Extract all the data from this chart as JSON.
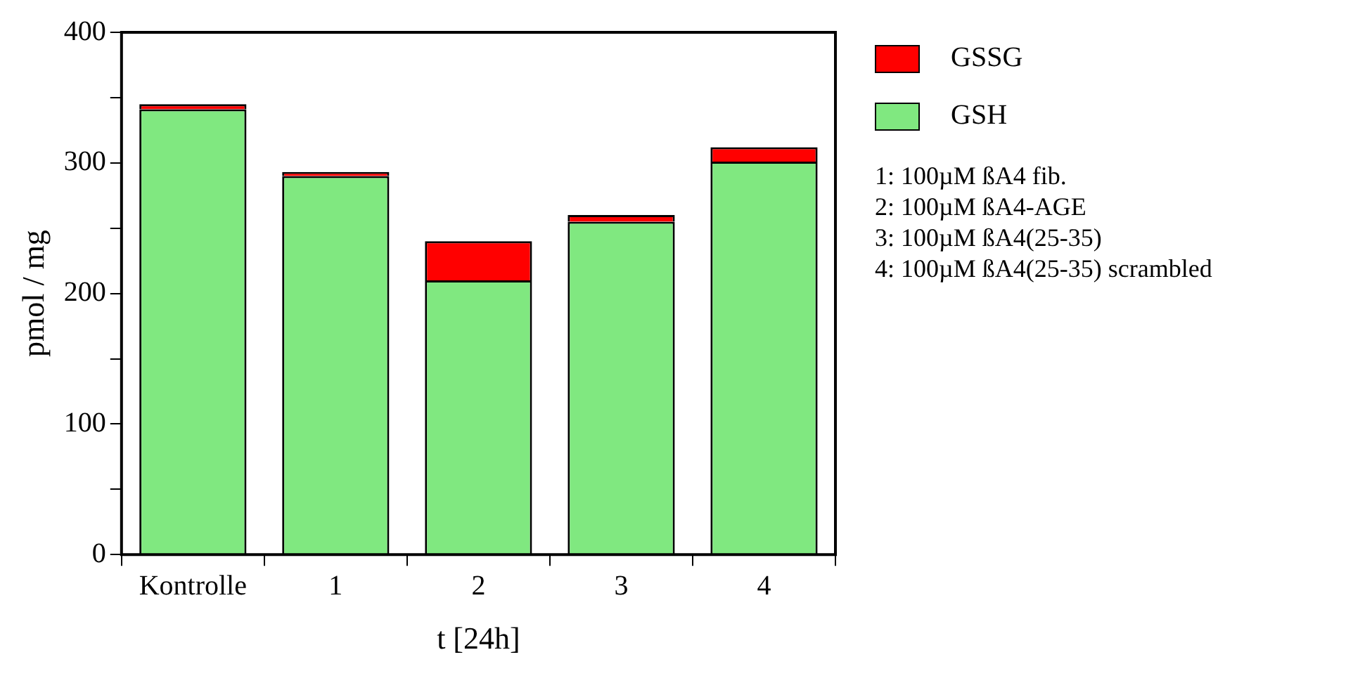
{
  "chart_data": {
    "type": "bar",
    "stacked": true,
    "xlabel": "t [24h]",
    "ylabel": "pmol / mg",
    "categories": [
      "Kontrolle",
      "1",
      "2",
      "3",
      "4"
    ],
    "series": [
      {
        "name": "GSH",
        "color": "#80e880",
        "values": [
          341,
          290,
          210,
          255,
          301
        ]
      },
      {
        "name": "GSSG",
        "color": "#ff0000",
        "values": [
          4,
          3,
          30,
          5,
          11
        ]
      }
    ],
    "ylim": [
      0,
      400
    ],
    "yticks": [
      0,
      {
        "value": 50,
        "label": null
      },
      100,
      {
        "value": 150,
        "label": null
      },
      200,
      {
        "value": 250,
        "label": null
      },
      300,
      {
        "value": 350,
        "label": null
      },
      400
    ],
    "grid": false,
    "legend": "right",
    "annotations": [
      "1: 100µM ßA4 fib.",
      "2: 100µM ßA4-AGE",
      "3: 100µM ßA4(25-35)",
      "4: 100µM ßA4(25-35) scrambled"
    ]
  }
}
